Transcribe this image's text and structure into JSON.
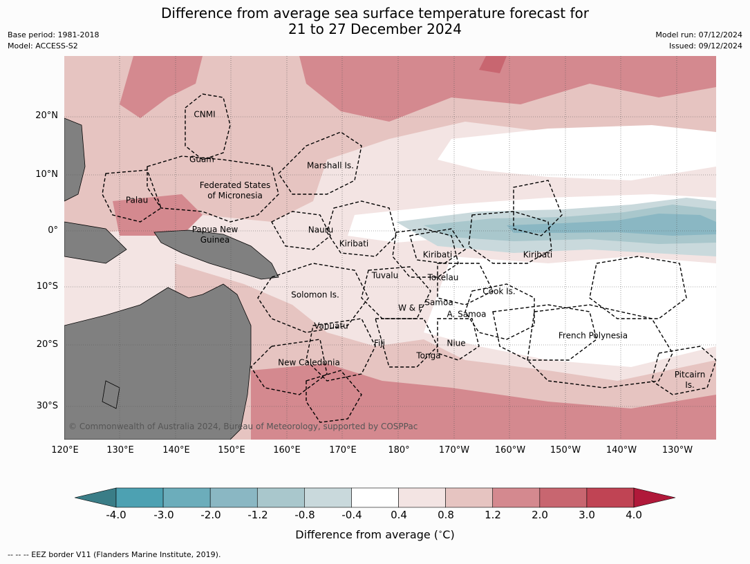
{
  "title_line1": "Difference from average sea surface temperature forecast for",
  "title_line2": "21 to 27 December 2024",
  "base_period": "Base period: 1981-2018",
  "model": "Model: ACCESS-S2",
  "model_run": "Model run: 07/12/2024",
  "issued": "Issued: 09/12/2024",
  "lat_ticks": [
    "20°N",
    "10°N",
    "0°",
    "10°S",
    "20°S",
    "30°S"
  ],
  "lon_ticks": [
    "120°E",
    "130°E",
    "140°E",
    "150°E",
    "160°E",
    "170°E",
    "180°",
    "170°W",
    "160°W",
    "150°W",
    "140°W",
    "130°W"
  ],
  "regions": {
    "cnmi": "CNMI",
    "guam": "Guam",
    "marshall": "Marshall Is.",
    "micronesia_1": "Federated States",
    "micronesia_2": "of Micronesia",
    "palau": "Palau",
    "nauru": "Nauru",
    "png_1": "Papua New",
    "png_2": "Guinea",
    "kiribati_w": "Kiribati",
    "kiribati_c": "Kiribati",
    "kiribati_e": "Kiribati",
    "tuvalu": "Tuvalu",
    "tokelau": "Tokelau",
    "solomon": "Solomon Is.",
    "cook": "Cook Is.",
    "samoa": "Samoa",
    "wf": "W & F",
    "amsamoa": "A. Samoa",
    "vanuatu": "Vanuatu",
    "fiji": "Fiji",
    "niue": "Niue",
    "tonga": "Tonga",
    "frpoly": "French Polynesia",
    "newcal": "New Caledonia",
    "pitcairn_1": "Pitcairn",
    "pitcairn_2": "Is."
  },
  "copyright": "© Commonwealth of Australia 2024, Bureau of Meteorology, supported by COSPPac",
  "colorbar": {
    "ticks": [
      "-4.0",
      "-3.0",
      "-2.0",
      "-1.2",
      "-0.8",
      "-0.4",
      "0.4",
      "0.8",
      "1.2",
      "2.0",
      "3.0",
      "4.0"
    ],
    "colors": [
      "#3a7d87",
      "#4da1b2",
      "#6cadbb",
      "#8ab7c3",
      "#a9c7cc",
      "#c9d9dc",
      "#ffffff",
      "#f3e4e3",
      "#e6c4c1",
      "#d4898f",
      "#c86670",
      "#c04454",
      "#b0193a"
    ],
    "label": "Difference from average ($^\\circ$C)",
    "label_text": "Difference from average (",
    "label_unit": "C)"
  },
  "footnote": "--  --  -- EEZ border V11 (Flanders Marine Institute, 2019).",
  "map_colors": {
    "land": "#808080",
    "background_anomaly": "#f3e4e3",
    "warm_moderate": "#e6c4c1",
    "warm_strong": "#d4898f",
    "warm_very": "#c86670",
    "neutral": "#ffffff",
    "cool_light": "#c9d9dc",
    "cool_mid": "#a9c7cc",
    "cool_strong": "#8ab7c3"
  }
}
